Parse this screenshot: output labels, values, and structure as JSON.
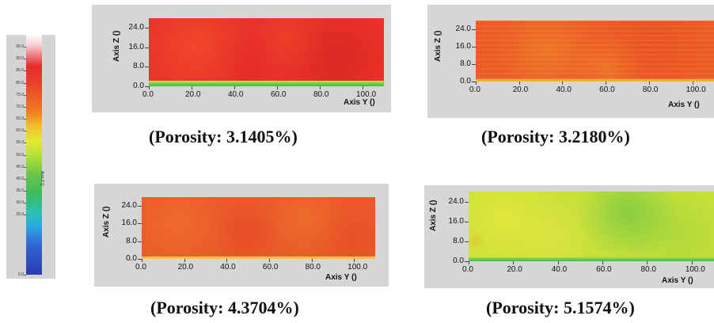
{
  "legend": {
    "label": "Axis Z ()",
    "ticks": [
      "95.0",
      "90.0",
      "85.0",
      "80.0",
      "75.0",
      "70.0",
      "65.0",
      "60.0",
      "55.0",
      "50.0",
      "45.0",
      "40.0",
      "35.0",
      "30.0",
      "25.0",
      "0.0"
    ]
  },
  "captions": {
    "p1": "(Porosity: 3.1405%)",
    "p2": "(Porosity: 3.2180%)",
    "p3": "(Porosity: 4.3704%)",
    "p4": "(Porosity: 5.1574%)"
  },
  "axes": {
    "z_label": "Axis Z ()",
    "y_label": "Axis Y ()",
    "z_ticks": [
      "24.0",
      "16.0",
      "8.0",
      "0.0"
    ],
    "y_ticks": [
      "0.0",
      "20.0",
      "40.0",
      "60.0",
      "80.0",
      "100.0"
    ]
  },
  "chart_data": [
    {
      "type": "heatmap",
      "title": "",
      "xlabel": "Axis Y ()",
      "ylabel": "Axis Z ()",
      "xlim": [
        0,
        110
      ],
      "ylim": [
        0,
        28
      ],
      "porosity": "3.1405%",
      "dominant_color": "#e8322a",
      "base_layer_color": "#3cbc4a",
      "colorbar": {
        "label": "Axis Z ()",
        "ticks": [
          95,
          90,
          85,
          80,
          75,
          70,
          65,
          60,
          55,
          50,
          45,
          40,
          35,
          30,
          25,
          0
        ]
      }
    },
    {
      "type": "heatmap",
      "title": "",
      "xlabel": "Axis Y ()",
      "ylabel": "Axis Z ()",
      "xlim": [
        0,
        110
      ],
      "ylim": [
        0,
        28
      ],
      "porosity": "3.2180%",
      "dominant_color": "#ec5a28"
    },
    {
      "type": "heatmap",
      "title": "",
      "xlabel": "Axis Y ()",
      "ylabel": "Axis Z ()",
      "xlim": [
        0,
        110
      ],
      "ylim": [
        0,
        28
      ],
      "porosity": "4.3704%",
      "dominant_color": "#ea5a2a"
    },
    {
      "type": "heatmap",
      "title": "",
      "xlabel": "Axis Y ()",
      "ylabel": "Axis Z ()",
      "xlim": [
        0,
        110
      ],
      "ylim": [
        0,
        28
      ],
      "porosity": "5.1574%",
      "dominant_color": "#c8e03a",
      "base_layer_color": "#3cbc4a"
    }
  ]
}
